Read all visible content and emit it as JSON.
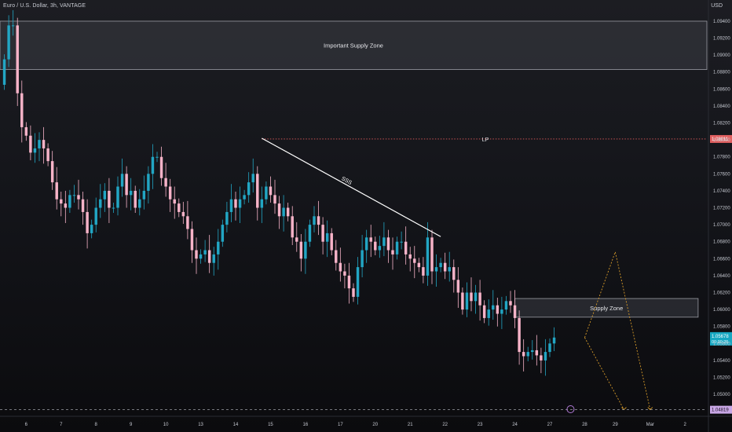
{
  "header": {
    "symbol_title": "Euro / U.S. Dollar, 3h, VANTAGE",
    "currency": "USD"
  },
  "colors": {
    "up": "#22a6c4",
    "down": "#f7b3c8",
    "price_line": "#e05a5a",
    "zone_fill": "#3a3c44",
    "zone_stroke": "#9a9ca4",
    "projection": "#d69a2a",
    "current_tag": "#17a7c2",
    "low_tag": "#c9a7e6",
    "lp_tag": "#e06060",
    "event_icon": "#b07ad6"
  },
  "chart_data": {
    "type": "candlestick",
    "y_ticks": [
      "1.09400",
      "1.09200",
      "1.09000",
      "1.08800",
      "1.08600",
      "1.08400",
      "1.08200",
      "1.08000",
      "1.07800",
      "1.07600",
      "1.07400",
      "1.07200",
      "1.07000",
      "1.06800",
      "1.06600",
      "1.06400",
      "1.06200",
      "1.06000",
      "1.05800",
      "1.05600",
      "1.05400",
      "1.05200",
      "1.05000"
    ],
    "ylim": [
      1.0476,
      1.0952
    ],
    "x_ticks": [
      {
        "label": "6",
        "idx": 5
      },
      {
        "label": "7",
        "idx": 13
      },
      {
        "label": "8",
        "idx": 21
      },
      {
        "label": "9",
        "idx": 29
      },
      {
        "label": "10",
        "idx": 37
      },
      {
        "label": "13",
        "idx": 45
      },
      {
        "label": "14",
        "idx": 53
      },
      {
        "label": "15",
        "idx": 61
      },
      {
        "label": "16",
        "idx": 69
      },
      {
        "label": "17",
        "idx": 77
      },
      {
        "label": "20",
        "idx": 85
      },
      {
        "label": "21",
        "idx": 93
      },
      {
        "label": "22",
        "idx": 101
      },
      {
        "label": "23",
        "idx": 109
      },
      {
        "label": "24",
        "idx": 117
      },
      {
        "label": "27",
        "idx": 125
      },
      {
        "label": "28",
        "idx": 133
      },
      {
        "label": "29",
        "idx": 140
      },
      {
        "label": "Mar",
        "idx": 148
      },
      {
        "label": "2",
        "idx": 156
      }
    ],
    "x_range": [
      -1,
      161
    ],
    "candles_close": [
      1.0895,
      1.0935,
      1.0935,
      1.0855,
      1.0815,
      1.0805,
      1.0785,
      1.079,
      1.08,
      1.079,
      1.0775,
      1.075,
      1.073,
      1.0725,
      1.072,
      1.0735,
      1.0735,
      1.073,
      1.0715,
      1.069,
      1.07,
      1.072,
      1.073,
      1.074,
      1.072,
      1.072,
      1.0745,
      1.076,
      1.0735,
      1.074,
      1.072,
      1.073,
      1.074,
      1.076,
      1.078,
      1.078,
      1.0755,
      1.0745,
      1.073,
      1.0725,
      1.0715,
      1.071,
      1.0695,
      1.067,
      1.066,
      1.0665,
      1.067,
      1.0655,
      1.0665,
      1.068,
      1.07,
      1.0715,
      1.073,
      1.072,
      1.073,
      1.0735,
      1.075,
      1.076,
      1.072,
      1.073,
      1.0745,
      1.0735,
      1.0725,
      1.071,
      1.072,
      1.071,
      1.0685,
      1.068,
      1.066,
      1.068,
      1.07,
      1.071,
      1.07,
      1.068,
      1.069,
      1.067,
      1.0655,
      1.0645,
      1.064,
      1.0625,
      1.0615,
      1.065,
      1.067,
      1.0685,
      1.068,
      1.067,
      1.0675,
      1.0685,
      1.067,
      1.0665,
      1.068,
      1.068,
      1.0665,
      1.066,
      1.0655,
      1.065,
      1.064,
      1.0685,
      1.0645,
      1.065,
      1.0655,
      1.0645,
      1.065,
      1.0635,
      1.062,
      1.06,
      1.062,
      1.061,
      1.062,
      1.0605,
      1.059,
      1.06,
      1.0605,
      1.0595,
      1.06,
      1.061,
      1.0605,
      1.059,
      1.055,
      1.0545,
      1.055,
      1.0552,
      1.0546,
      1.054,
      1.055,
      1.056,
      1.0567
    ],
    "levels": {
      "lp_price": 1.08011,
      "lp_label": "LP",
      "lp_tag": "1.08011",
      "current_price": "1.05678",
      "current_sub": "00:39:25",
      "low_tag": "1.04819",
      "ssl_label": "SSS"
    },
    "zones": [
      {
        "label": "Important Supply Zone",
        "y_top": 1.094,
        "y_bottom": 1.0883,
        "x_start": -1,
        "x_end": 161
      },
      {
        "label": "Supply Zone",
        "y_top": 1.0613,
        "y_bottom": 1.0591,
        "x_start": 117,
        "x_end": 159
      }
    ],
    "ssl_line": {
      "from_idx": 59,
      "from_price": 1.0802,
      "to_idx": 100,
      "to_price": 1.0686
    },
    "projection": [
      {
        "idx": 133,
        "price": 1.0567
      },
      {
        "idx": 140,
        "price": 1.0668
      },
      {
        "idx": 148,
        "price": 1.0482
      }
    ],
    "projection2": [
      {
        "idx": 133,
        "price": 1.0567
      },
      {
        "idx": 142,
        "price": 1.0482
      }
    ]
  }
}
